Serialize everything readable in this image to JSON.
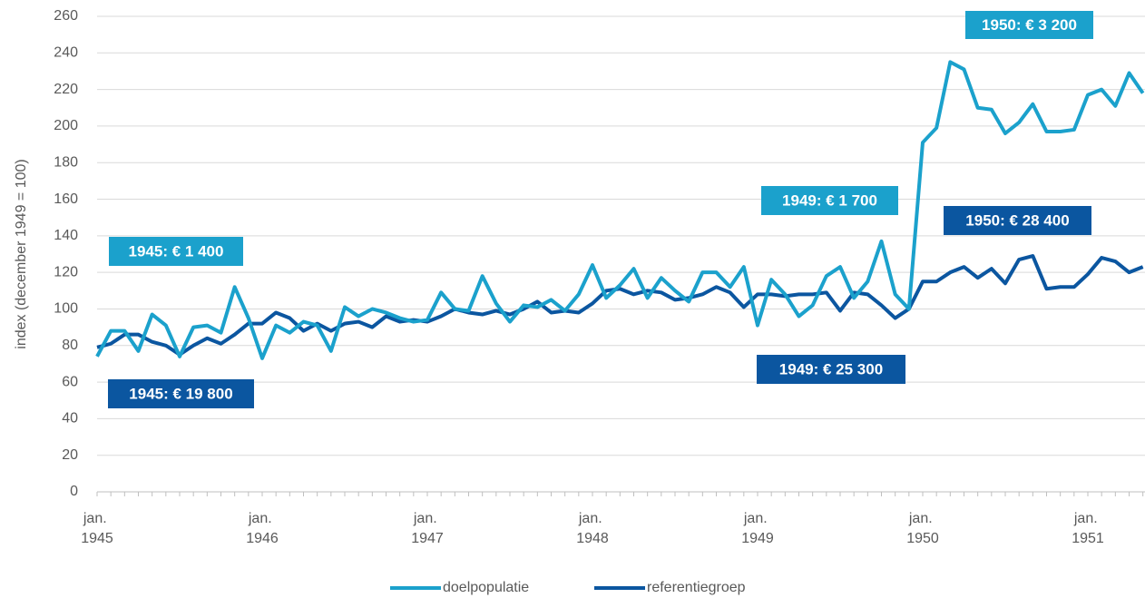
{
  "chart_data": {
    "type": "line",
    "y_label": "index (december 1949 = 100)",
    "categories": [
      "jan. 1945",
      null,
      null,
      null,
      null,
      null,
      null,
      null,
      null,
      null,
      null,
      null,
      "jan. 1946",
      null,
      null,
      null,
      null,
      null,
      null,
      null,
      null,
      null,
      null,
      null,
      "jan. 1947",
      null,
      null,
      null,
      null,
      null,
      null,
      null,
      null,
      null,
      null,
      null,
      "jan. 1948",
      null,
      null,
      null,
      null,
      null,
      null,
      null,
      null,
      null,
      null,
      null,
      "jan. 1949",
      null,
      null,
      null,
      null,
      null,
      null,
      null,
      null,
      null,
      null,
      null,
      "jan. 1950",
      null,
      null,
      null,
      null,
      null,
      null,
      null,
      null,
      null,
      null,
      null,
      "jan. 1951",
      null,
      null,
      null,
      null
    ],
    "series": [
      {
        "name": "doelpopulatie",
        "color": "#1ba1cc",
        "values": [
          74,
          88,
          88,
          77,
          97,
          91,
          74,
          90,
          91,
          87,
          112,
          95,
          73,
          91,
          87,
          93,
          91,
          77,
          101,
          96,
          100,
          98,
          95,
          93,
          94,
          109,
          100,
          99,
          118,
          103,
          93,
          102,
          101,
          105,
          99,
          108,
          124,
          106,
          113,
          122,
          106,
          117,
          110,
          104,
          120,
          120,
          112,
          123,
          91,
          116,
          108,
          96,
          102,
          118,
          123,
          106,
          115,
          137,
          108,
          100,
          191,
          199,
          235,
          231,
          210,
          209,
          196,
          202,
          212,
          197,
          197,
          198,
          217,
          220,
          211,
          229,
          218
        ]
      },
      {
        "name": "referentiegroep",
        "color": "#0b56a0",
        "values": [
          79,
          81,
          86,
          86,
          82,
          80,
          75,
          80,
          84,
          81,
          86,
          92,
          92,
          98,
          95,
          88,
          92,
          88,
          92,
          93,
          90,
          96,
          93,
          94,
          93,
          96,
          100,
          98,
          97,
          99,
          97,
          100,
          104,
          98,
          99,
          98,
          103,
          110,
          111,
          108,
          110,
          109,
          105,
          106,
          108,
          112,
          109,
          101,
          108,
          108,
          107,
          108,
          108,
          109,
          99,
          109,
          108,
          102,
          95,
          100,
          115,
          115,
          120,
          123,
          117,
          122,
          114,
          127,
          129,
          111,
          112,
          112,
          119,
          128,
          126,
          120,
          123
        ]
      }
    ],
    "annotations": [
      {
        "text": "1950: € 3 200",
        "color": "#1ba1cc"
      },
      {
        "text": "1949: € 1 700",
        "color": "#1ba1cc"
      },
      {
        "text": "1950: € 28 400",
        "color": "#0b56a0"
      },
      {
        "text": "1945: € 1 400",
        "color": "#1ba1cc"
      },
      {
        "text": "1949: € 25 300",
        "color": "#0b56a0"
      },
      {
        "text": "1945: € 19 800",
        "color": "#0b56a0"
      }
    ],
    "ylim": [
      0,
      260
    ],
    "yticks": [
      0,
      20,
      40,
      60,
      80,
      100,
      120,
      140,
      160,
      180,
      200,
      220,
      240,
      260
    ],
    "grid": true,
    "legend": "bottom"
  }
}
